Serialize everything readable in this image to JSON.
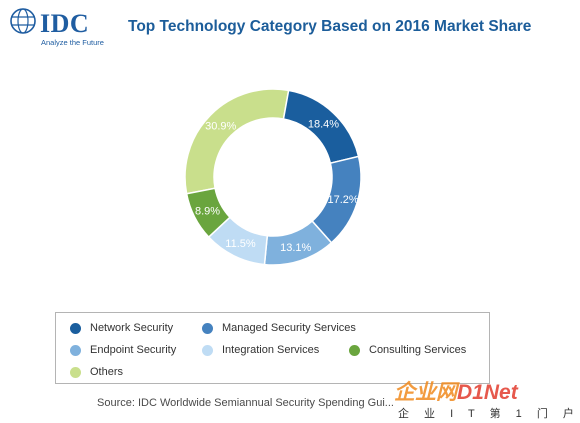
{
  "header": {
    "logo_text": "IDC",
    "logo_tagline": "Analyze the Future",
    "title": "Top Technology Category Based on 2016 Market Share"
  },
  "chart_data": {
    "type": "pie",
    "subtype": "donut",
    "title": "Top Technology Category Based on 2016 Market Share",
    "labels": [
      "Network Security",
      "Managed Security Services",
      "Endpoint Security",
      "Integration Services",
      "Consulting Services",
      "Others"
    ],
    "values": [
      18.4,
      17.2,
      13.1,
      11.5,
      8.9,
      30.9
    ],
    "value_labels": [
      "18.4%",
      "17.2%",
      "13.1%",
      "11.5%",
      "8.9%",
      "30.9%"
    ],
    "colors": [
      "#1a5e9e",
      "#4582bf",
      "#7fb1dd",
      "#bfdcf4",
      "#6aa53e",
      "#c9df8c"
    ],
    "label_colors": [
      "#ffffff",
      "#ffffff",
      "#ffffff",
      "#ffffff",
      "#ffffff",
      "#ffffff"
    ],
    "start": "right, clockwise after Others",
    "legend_placement": "bottom"
  },
  "legend": {
    "items": [
      {
        "label": "Network Security",
        "color": "#1a5e9e"
      },
      {
        "label": "Managed Security Services",
        "color": "#4582bf"
      },
      {
        "label": "Endpoint Security",
        "color": "#7fb1dd"
      },
      {
        "label": "Integration Services",
        "color": "#bfdcf4"
      },
      {
        "label": "Consulting Services",
        "color": "#6aa53e"
      },
      {
        "label": "Others",
        "color": "#c9df8c"
      }
    ]
  },
  "footer": {
    "source": "Source: IDC Worldwide Semiannual Security Spending Gui..."
  },
  "watermark": {
    "main": "企业网",
    "brand": "D1Net",
    "sub": "企 业 I T 第 1 门 户"
  }
}
